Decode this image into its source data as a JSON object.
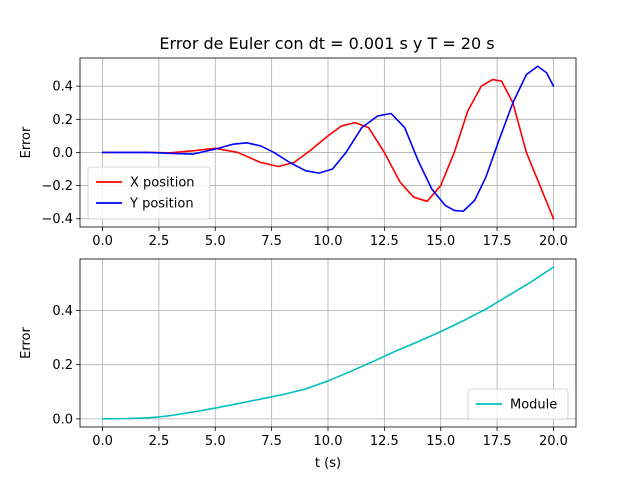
{
  "chart_data": [
    {
      "type": "line",
      "title": "Error de Euler con dt = 0.001 s y T = 20 s",
      "xlabel": "",
      "ylabel": "Error",
      "xlim": [
        -1,
        21
      ],
      "ylim": [
        -0.45,
        0.57
      ],
      "xticks": [
        0,
        2.5,
        5,
        7.5,
        10,
        12.5,
        15,
        17.5,
        20
      ],
      "xtick_labels": [
        "0.0",
        "2.5",
        "5.0",
        "7.5",
        "10.0",
        "12.5",
        "15.0",
        "17.5",
        "20.0"
      ],
      "yticks": [
        -0.4,
        -0.2,
        0.0,
        0.2,
        0.4
      ],
      "ytick_labels": [
        "−0.4",
        "−0.2",
        "0.0",
        "0.2",
        "0.4"
      ],
      "grid": true,
      "legend_position": "lower-left",
      "series": [
        {
          "name": "X position",
          "color": "#ff0000",
          "x": [
            0,
            1,
            2,
            3,
            4,
            5,
            6,
            7,
            7.8,
            8.5,
            9.2,
            10,
            10.6,
            11.2,
            11.8,
            12.5,
            13.2,
            13.8,
            14.4,
            15,
            15.6,
            16.2,
            16.8,
            17.3,
            17.7,
            18.2,
            18.8,
            19.4,
            20
          ],
          "y": [
            0,
            0,
            0,
            -0.002,
            0.01,
            0.025,
            0.0,
            -0.06,
            -0.085,
            -0.06,
            0.01,
            0.1,
            0.16,
            0.18,
            0.15,
            0.0,
            -0.18,
            -0.27,
            -0.295,
            -0.2,
            0.0,
            0.25,
            0.4,
            0.44,
            0.43,
            0.3,
            0.0,
            -0.2,
            -0.4
          ]
        },
        {
          "name": "Y position",
          "color": "#0000ff",
          "x": [
            0,
            1,
            2,
            3,
            4,
            5,
            5.8,
            6.4,
            7,
            7.6,
            8.3,
            9,
            9.6,
            10.2,
            10.8,
            11.5,
            12.2,
            12.8,
            13.4,
            14,
            14.6,
            15.2,
            15.6,
            16,
            16.5,
            17,
            17.6,
            18.2,
            18.8,
            19.3,
            19.7,
            20
          ],
          "y": [
            0,
            0,
            0,
            -0.005,
            -0.01,
            0.02,
            0.05,
            0.058,
            0.04,
            0.0,
            -0.06,
            -0.11,
            -0.125,
            -0.1,
            0.0,
            0.15,
            0.22,
            0.235,
            0.15,
            -0.05,
            -0.22,
            -0.32,
            -0.35,
            -0.355,
            -0.29,
            -0.15,
            0.08,
            0.3,
            0.47,
            0.52,
            0.48,
            0.4
          ]
        }
      ]
    },
    {
      "type": "line",
      "title": "",
      "xlabel": "t (s)",
      "ylabel": "Error",
      "xlim": [
        -1,
        21
      ],
      "ylim": [
        -0.03,
        0.59
      ],
      "xticks": [
        0,
        2.5,
        5,
        7.5,
        10,
        12.5,
        15,
        17.5,
        20
      ],
      "xtick_labels": [
        "0.0",
        "2.5",
        "5.0",
        "7.5",
        "10.0",
        "12.5",
        "15.0",
        "17.5",
        "20.0"
      ],
      "yticks": [
        0.0,
        0.2,
        0.4
      ],
      "ytick_labels": [
        "0.0",
        "0.2",
        "0.4"
      ],
      "grid": true,
      "legend_position": "lower-right",
      "series": [
        {
          "name": "Module",
          "color": "#00bfbf",
          "x": [
            0,
            1,
            2,
            2.5,
            3,
            4,
            5,
            6,
            7,
            8,
            9,
            10,
            11,
            12,
            13,
            14,
            15,
            16,
            17,
            18,
            19,
            20
          ],
          "y": [
            0,
            0.001,
            0.004,
            0.007,
            0.012,
            0.025,
            0.04,
            0.056,
            0.073,
            0.09,
            0.11,
            0.14,
            0.175,
            0.212,
            0.25,
            0.285,
            0.322,
            0.362,
            0.405,
            0.455,
            0.505,
            0.56
          ]
        }
      ]
    }
  ]
}
